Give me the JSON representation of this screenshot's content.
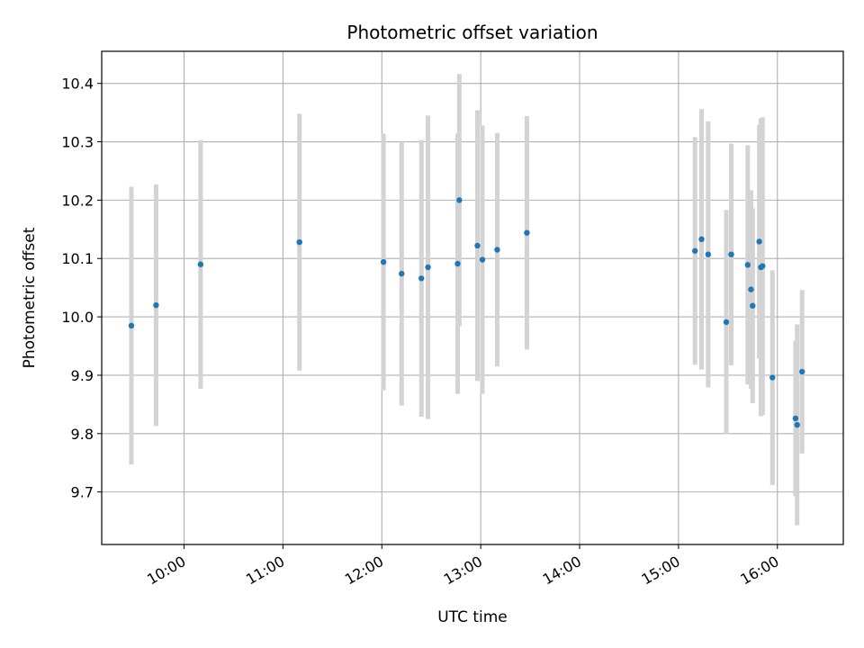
{
  "chart_data": {
    "type": "scatter",
    "title": "Photometric offset variation",
    "xlabel": "UTC time",
    "ylabel": "Photometric offset",
    "x_ticks": [
      "10:00",
      "11:00",
      "12:00",
      "13:00",
      "14:00",
      "15:00",
      "16:00"
    ],
    "y_ticks": [
      "9.7",
      "9.8",
      "9.9",
      "10.0",
      "10.1",
      "10.2",
      "10.3",
      "10.4"
    ],
    "xlim": [
      "09:10",
      "16:40"
    ],
    "ylim": [
      9.61,
      10.455
    ],
    "grid": true,
    "colors": {
      "point": "#1f77b4",
      "errorbar": "#d3d3d3",
      "grid": "#b0b0b0"
    },
    "points": [
      {
        "x": "09:28",
        "y": 9.985,
        "yerr": 0.238
      },
      {
        "x": "09:43",
        "y": 10.02,
        "yerr": 0.207
      },
      {
        "x": "10:10",
        "y": 10.09,
        "yerr": 0.213
      },
      {
        "x": "11:10",
        "y": 10.128,
        "yerr": 0.22
      },
      {
        "x": "12:01",
        "y": 10.094,
        "yerr": 0.22
      },
      {
        "x": "12:12",
        "y": 10.074,
        "yerr": 0.226
      },
      {
        "x": "12:24",
        "y": 10.066,
        "yerr": 0.237
      },
      {
        "x": "12:28",
        "y": 10.085,
        "yerr": 0.26
      },
      {
        "x": "12:46",
        "y": 10.091,
        "yerr": 0.223
      },
      {
        "x": "12:47",
        "y": 10.2,
        "yerr": 0.216
      },
      {
        "x": "12:58",
        "y": 10.122,
        "yerr": 0.232
      },
      {
        "x": "13:01",
        "y": 10.098,
        "yerr": 0.23
      },
      {
        "x": "13:10",
        "y": 10.115,
        "yerr": 0.2
      },
      {
        "x": "13:28",
        "y": 10.144,
        "yerr": 0.2
      },
      {
        "x": "15:10",
        "y": 10.113,
        "yerr": 0.195
      },
      {
        "x": "15:14",
        "y": 10.133,
        "yerr": 0.223
      },
      {
        "x": "15:18",
        "y": 10.107,
        "yerr": 0.228
      },
      {
        "x": "15:29",
        "y": 9.991,
        "yerr": 0.192
      },
      {
        "x": "15:32",
        "y": 10.107,
        "yerr": 0.19
      },
      {
        "x": "15:42",
        "y": 10.089,
        "yerr": 0.205
      },
      {
        "x": "15:44",
        "y": 10.047,
        "yerr": 0.17
      },
      {
        "x": "15:45",
        "y": 10.019,
        "yerr": 0.167
      },
      {
        "x": "15:49",
        "y": 10.129,
        "yerr": 0.2
      },
      {
        "x": "15:50",
        "y": 10.085,
        "yerr": 0.255
      },
      {
        "x": "15:51",
        "y": 10.087,
        "yerr": 0.255
      },
      {
        "x": "15:57",
        "y": 9.896,
        "yerr": 0.184
      },
      {
        "x": "16:11",
        "y": 9.826,
        "yerr": 0.133
      },
      {
        "x": "16:12",
        "y": 9.815,
        "yerr": 0.172
      },
      {
        "x": "16:15",
        "y": 9.906,
        "yerr": 0.14
      }
    ]
  }
}
